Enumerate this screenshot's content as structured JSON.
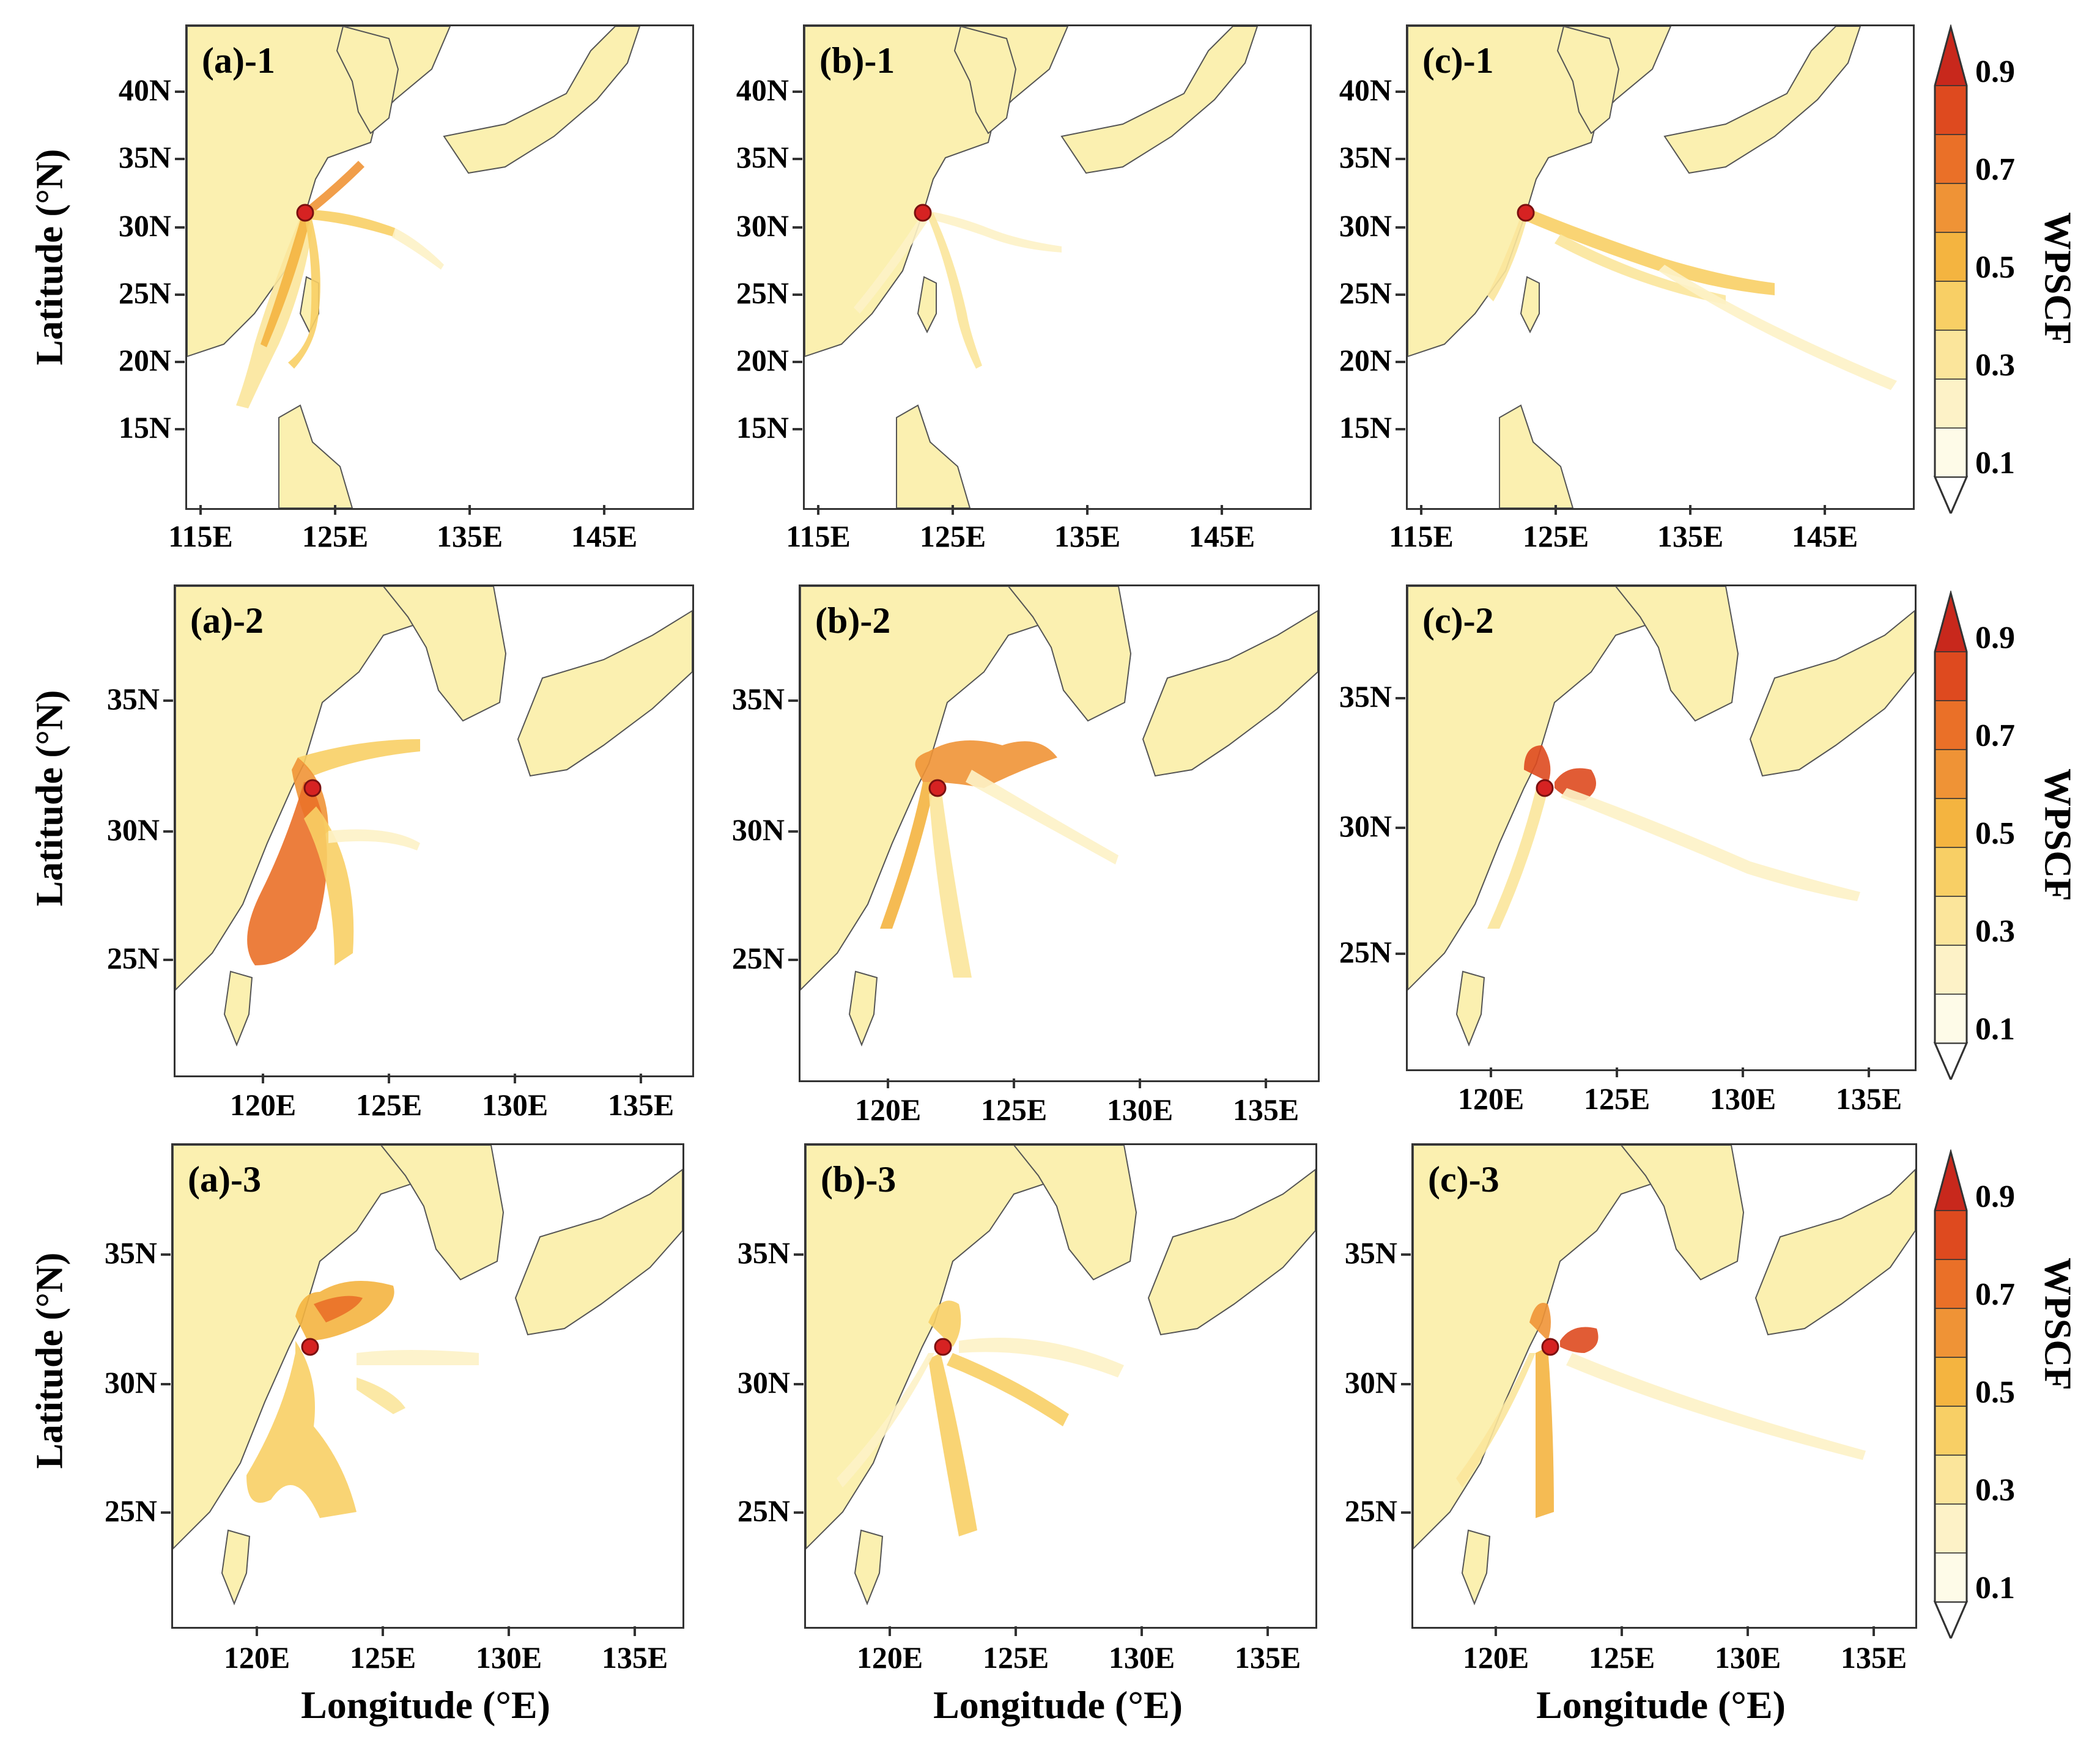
{
  "figure": {
    "y_axis_label": "Latitude (°N)",
    "x_axis_label": "Longitude (°E)",
    "colorbar_title": "WPSCF",
    "colorbar_ticks": [
      "0.1",
      "0.3",
      "0.5",
      "0.7",
      "0.9"
    ],
    "colorbar_colors": [
      "#fefbe8",
      "#fdf2c7",
      "#fbe59b",
      "#f8cf65",
      "#f4b440",
      "#ef9336",
      "#ea7028",
      "#de4a1f",
      "#c8281c"
    ],
    "site_marker_color": "#d62222",
    "land_color": "#fbf0b0"
  },
  "rows": [
    {
      "row_id": "1",
      "x_ticks": [
        "115E",
        "125E",
        "135E",
        "145E"
      ],
      "y_ticks": [
        "40N",
        "35N",
        "30N",
        "25N",
        "20N",
        "15N"
      ],
      "panels": [
        {
          "label": "(a)-1"
        },
        {
          "label": "(b)-1"
        },
        {
          "label": "(c)-1"
        }
      ]
    },
    {
      "row_id": "2",
      "x_ticks": [
        "120E",
        "125E",
        "130E",
        "135E"
      ],
      "y_ticks": [
        "35N",
        "30N",
        "25N"
      ],
      "panels": [
        {
          "label": "(a)-2"
        },
        {
          "label": "(b)-2"
        },
        {
          "label": "(c)-2"
        }
      ]
    },
    {
      "row_id": "3",
      "x_ticks": [
        "120E",
        "125E",
        "130E",
        "135E"
      ],
      "y_ticks": [
        "35N",
        "30N",
        "25N"
      ],
      "panels": [
        {
          "label": "(a)-3"
        },
        {
          "label": "(b)-3"
        },
        {
          "label": "(c)-3"
        }
      ]
    }
  ]
}
